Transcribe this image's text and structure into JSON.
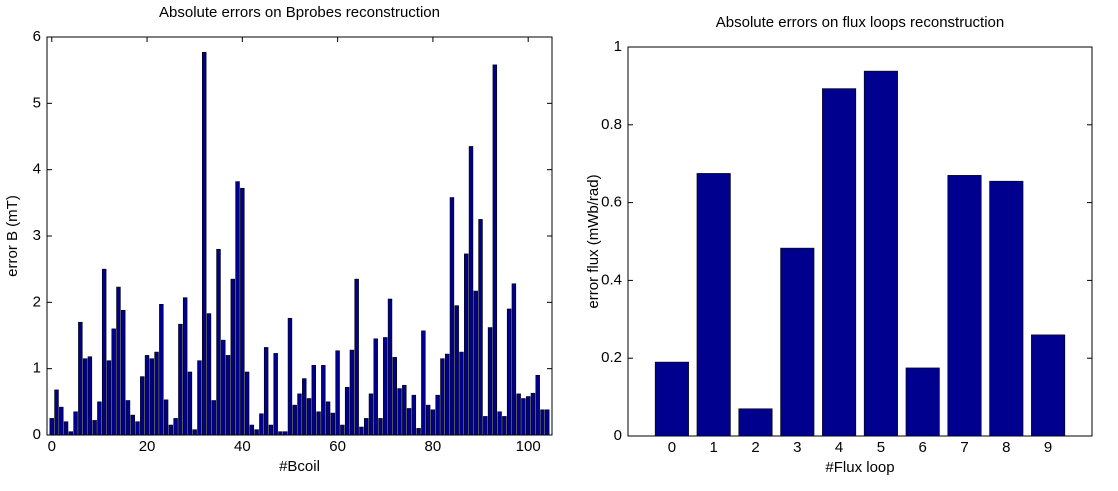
{
  "chart_data": [
    {
      "type": "bar",
      "title": "Absolute errors on Bprobes reconstruction",
      "xlabel": "#Bcoil",
      "ylabel": "error B (mT)",
      "color": "#00008f",
      "x": [
        0,
        1,
        2,
        3,
        4,
        5,
        6,
        7,
        8,
        9,
        10,
        11,
        12,
        13,
        14,
        15,
        16,
        17,
        18,
        19,
        20,
        21,
        22,
        23,
        24,
        25,
        26,
        27,
        28,
        29,
        30,
        31,
        32,
        33,
        34,
        35,
        36,
        37,
        38,
        39,
        40,
        41,
        42,
        43,
        44,
        45,
        46,
        47,
        48,
        49,
        50,
        51,
        52,
        53,
        54,
        55,
        56,
        57,
        58,
        59,
        60,
        61,
        62,
        63,
        64,
        65,
        66,
        67,
        68,
        69,
        70,
        71,
        72,
        73,
        74,
        75,
        76,
        77,
        78,
        79,
        80,
        81,
        82,
        83,
        84,
        85,
        86,
        87,
        88,
        89,
        90,
        91,
        92,
        93,
        94,
        95,
        96,
        97,
        98,
        99,
        100,
        101,
        102,
        103,
        104
      ],
      "values": [
        0.25,
        0.68,
        0.42,
        0.2,
        0.05,
        0.35,
        1.7,
        1.15,
        1.18,
        0.22,
        0.5,
        2.5,
        1.12,
        1.6,
        2.23,
        1.88,
        0.52,
        0.3,
        0.2,
        0.88,
        1.2,
        1.15,
        1.25,
        1.97,
        0.53,
        0.15,
        0.25,
        1.67,
        2.07,
        0.95,
        0.08,
        1.12,
        5.77,
        1.83,
        0.52,
        2.8,
        1.43,
        1.2,
        2.35,
        3.82,
        3.72,
        0.95,
        0.15,
        0.08,
        0.32,
        1.32,
        0.15,
        1.23,
        0.05,
        0.05,
        1.76,
        0.45,
        0.62,
        0.85,
        0.55,
        1.05,
        0.35,
        1.05,
        0.5,
        0.33,
        1.27,
        0.15,
        0.72,
        1.28,
        2.35,
        0.12,
        0.25,
        0.62,
        1.45,
        0.25,
        1.47,
        2.05,
        1.17,
        0.7,
        0.75,
        0.4,
        0.6,
        0.1,
        1.57,
        0.45,
        0.38,
        0.6,
        1.15,
        1.22,
        3.58,
        1.95,
        1.25,
        2.73,
        4.35,
        2.17,
        3.25,
        0.28,
        1.62,
        5.58,
        0.35,
        0.28,
        1.9,
        2.28,
        0.62,
        0.55,
        0.58,
        0.63,
        0.9,
        0.38,
        0.38
      ],
      "xlim": [
        -1,
        105
      ],
      "xticks": [
        0,
        20,
        40,
        60,
        80,
        100
      ],
      "ylim": [
        0,
        6
      ],
      "yticks": [
        0,
        1,
        2,
        3,
        4,
        5,
        6
      ]
    },
    {
      "type": "bar",
      "title": "Absolute errors on flux loops reconstruction",
      "xlabel": "#Flux loop",
      "ylabel": "error flux (mWb/rad)",
      "color": "#00008f",
      "categories": [
        "0",
        "1",
        "2",
        "3",
        "4",
        "5",
        "6",
        "7",
        "8",
        "9"
      ],
      "values": [
        0.19,
        0.675,
        0.07,
        0.483,
        0.893,
        0.938,
        0.175,
        0.67,
        0.655,
        0.26
      ],
      "ylim": [
        0,
        1
      ],
      "yticks": [
        0,
        0.2,
        0.4,
        0.6,
        0.8,
        1
      ]
    }
  ]
}
